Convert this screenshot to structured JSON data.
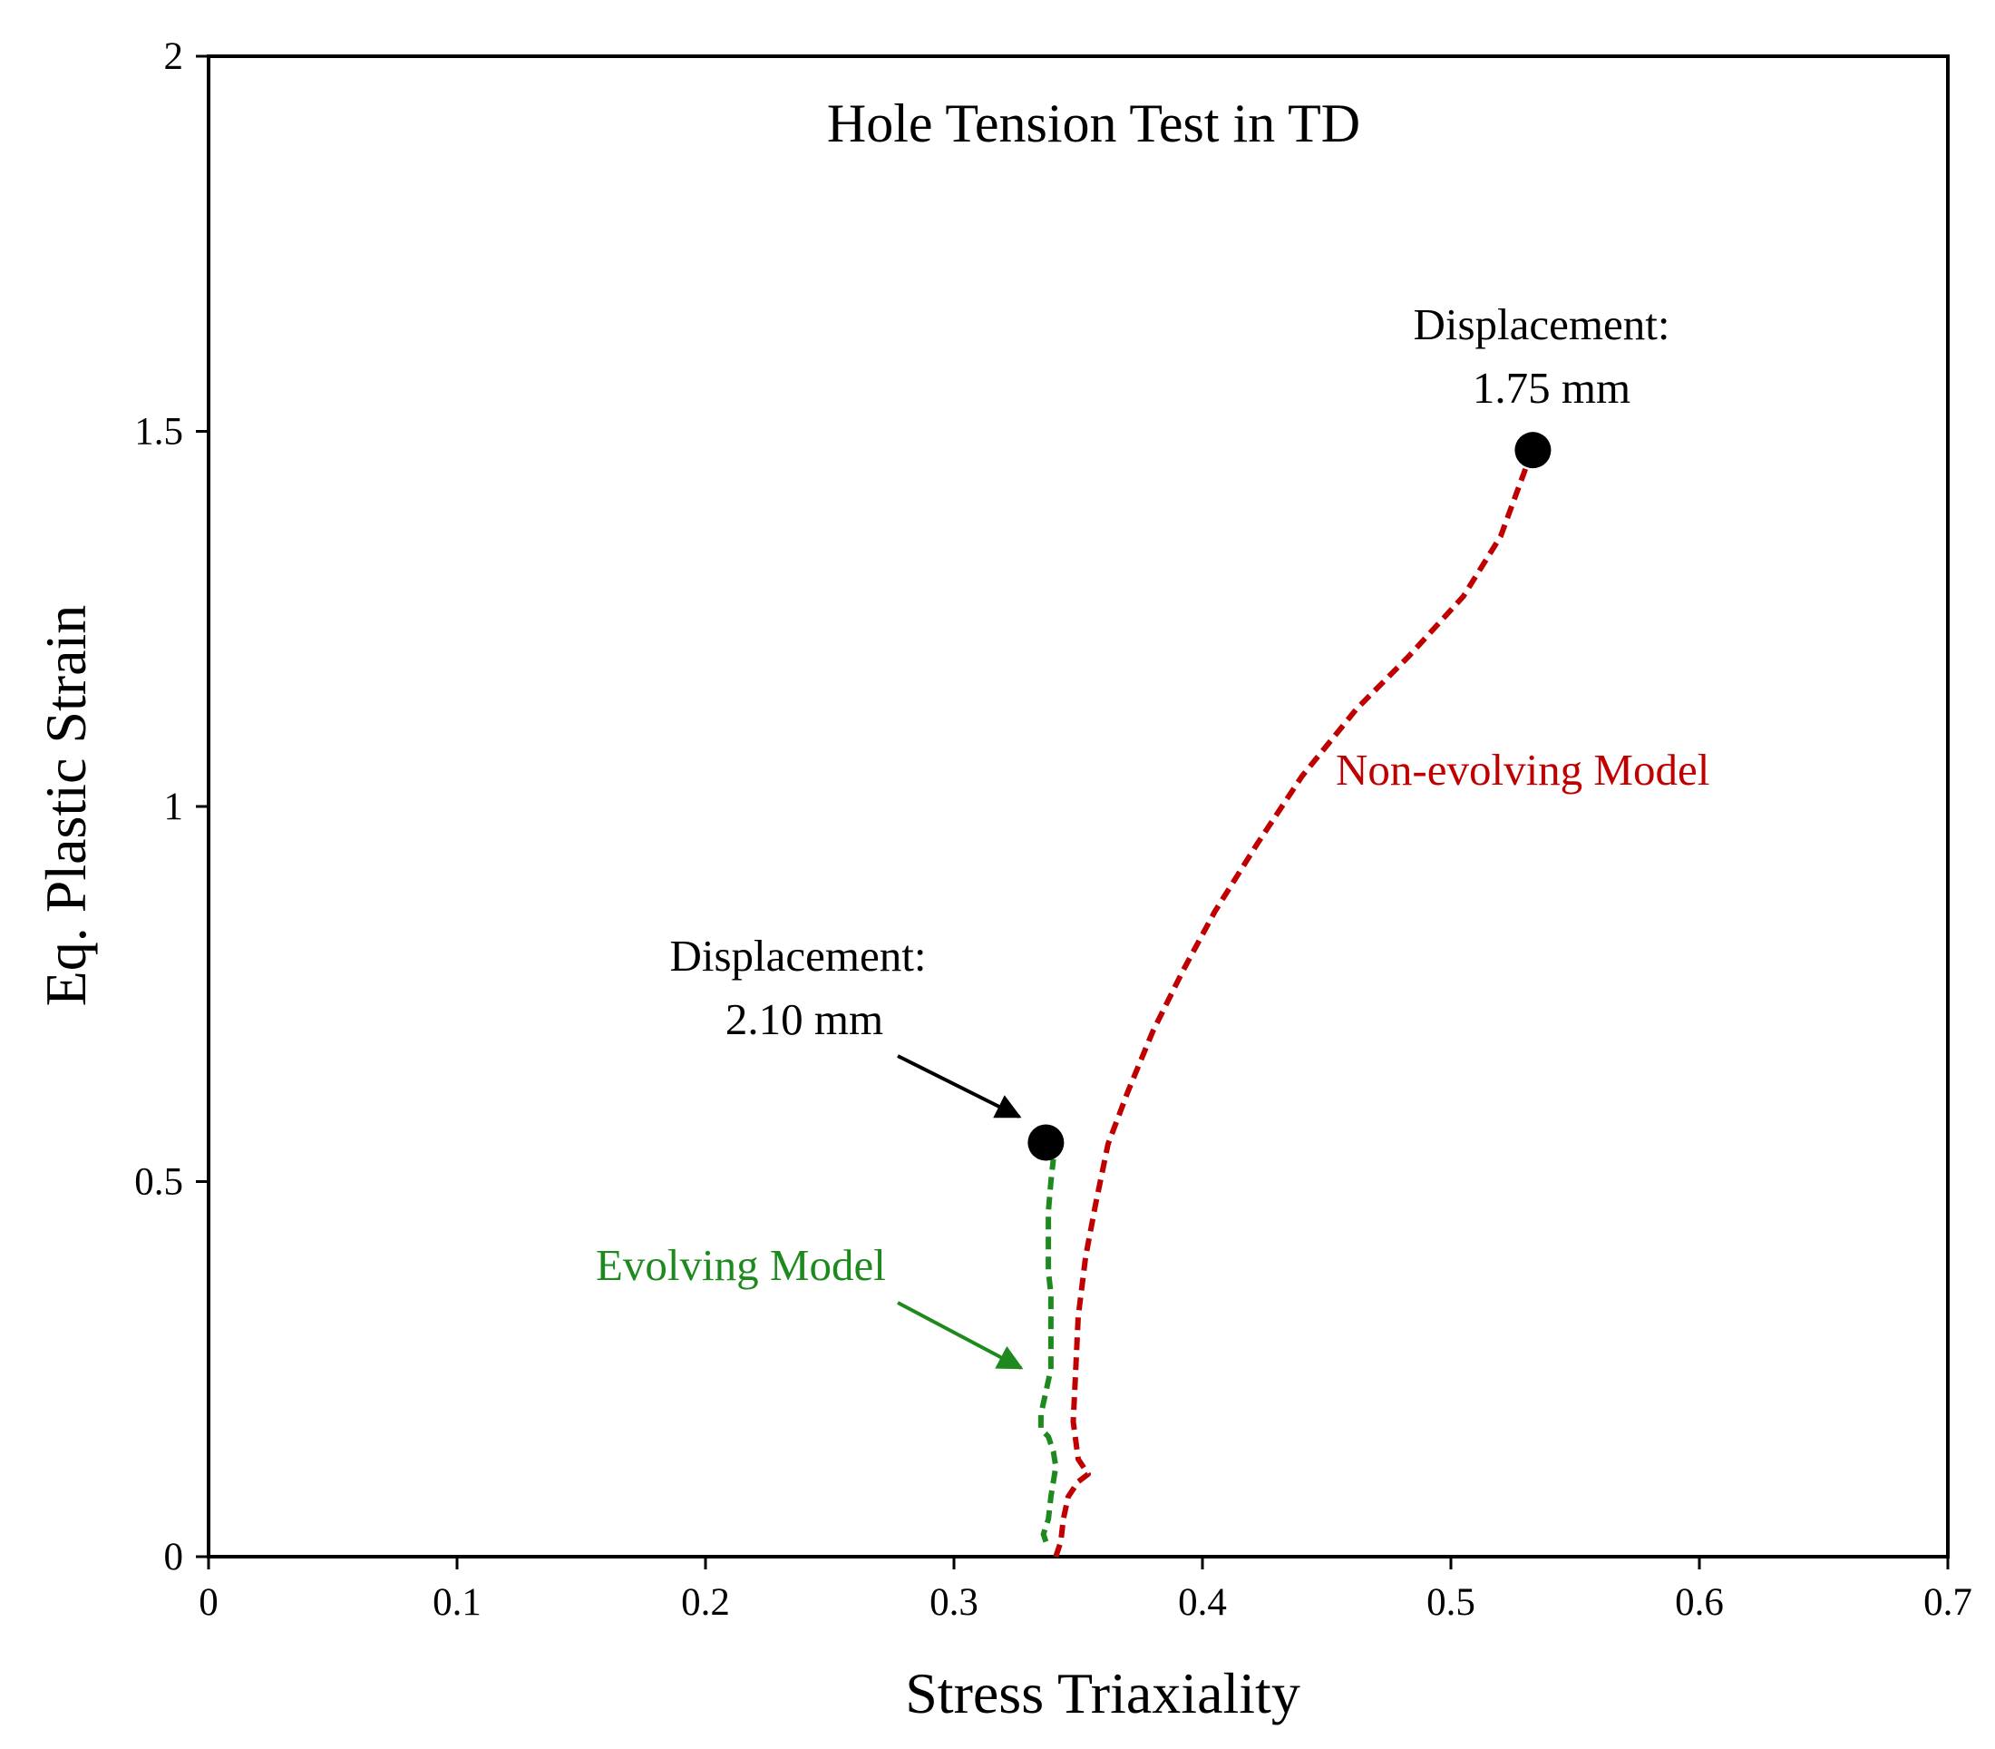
{
  "chart_data": {
    "type": "line",
    "title": "Hole Tension Test in TD",
    "xlabel": "Stress Triaxiality",
    "ylabel": "Eq. Plastic Strain",
    "xlim": [
      0,
      0.7
    ],
    "ylim": [
      0,
      2
    ],
    "xticks": [
      "0",
      "0.1",
      "0.2",
      "0.3",
      "0.4",
      "0.5",
      "0.6",
      "0.7"
    ],
    "yticks": [
      "0",
      "0.5",
      "1",
      "1.5",
      "2"
    ],
    "grid": false,
    "legend": "none",
    "series": [
      {
        "name": "Non-evolving Model",
        "color": "#c00000",
        "style": "dashed",
        "x": [
          0.341,
          0.343,
          0.344,
          0.346,
          0.35,
          0.354,
          0.35,
          0.348,
          0.349,
          0.35,
          0.353,
          0.357,
          0.362,
          0.37,
          0.38,
          0.392,
          0.405,
          0.422,
          0.44,
          0.462,
          0.483,
          0.505,
          0.52,
          0.53
        ],
        "y": [
          0.0,
          0.02,
          0.05,
          0.08,
          0.1,
          0.11,
          0.13,
          0.18,
          0.25,
          0.32,
          0.4,
          0.47,
          0.55,
          0.62,
          0.7,
          0.78,
          0.86,
          0.95,
          1.04,
          1.13,
          1.2,
          1.28,
          1.36,
          1.45
        ]
      },
      {
        "name": "Evolving Model",
        "color": "#1e8a1e",
        "style": "dashed",
        "x": [
          0.337,
          0.336,
          0.338,
          0.339,
          0.341,
          0.34,
          0.338,
          0.335,
          0.335,
          0.337,
          0.339,
          0.339,
          0.339,
          0.339,
          0.338,
          0.338,
          0.338,
          0.339,
          0.34
        ],
        "y": [
          0.02,
          0.03,
          0.05,
          0.08,
          0.12,
          0.14,
          0.16,
          0.17,
          0.19,
          0.22,
          0.25,
          0.29,
          0.32,
          0.35,
          0.38,
          0.42,
          0.46,
          0.5,
          0.53
        ]
      }
    ],
    "markers": [
      {
        "name": "end-non-evolving",
        "x": 0.533,
        "y": 1.475
      },
      {
        "name": "end-evolving",
        "x": 0.337,
        "y": 0.552
      }
    ],
    "annotations": {
      "disp_top_line1": "Displacement:",
      "disp_top_line2": "1.75 mm",
      "disp_bottom_line1": "Displacement:",
      "disp_bottom_line2": "2.10 mm",
      "non_evolving_label": "Non-evolving Model",
      "evolving_label": "Evolving Model"
    }
  }
}
